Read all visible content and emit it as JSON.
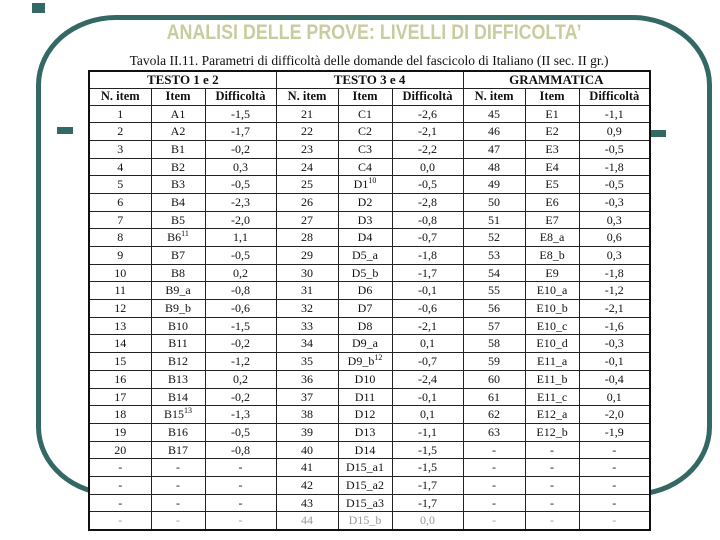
{
  "slide": {
    "title": "ANALISI DELLE PROVE: LIVELLI DI DIFFICOLTA’",
    "accent_color": "#336865",
    "title_color": "#c7cd9f"
  },
  "table": {
    "caption": "Tavola II.11. Parametri di difficoltà delle domande del fascicolo di Italiano (II sec. II gr.)",
    "groups": [
      {
        "label": "TESTO 1 e 2"
      },
      {
        "label": "TESTO 3 e 4"
      },
      {
        "label": "GRAMMATICA"
      }
    ],
    "columns": [
      "N. item",
      "Item",
      "Difficoltà"
    ],
    "rows": [
      [
        "1",
        "A1",
        "-1,5",
        "21",
        "C1",
        "-2,6",
        "45",
        "E1",
        "-1,1"
      ],
      [
        "2",
        "A2",
        "-1,7",
        "22",
        "C2",
        "-2,1",
        "46",
        "E2",
        "0,9"
      ],
      [
        "3",
        "B1",
        "-0,2",
        "23",
        "C3",
        "-2,2",
        "47",
        "E3",
        "-0,5"
      ],
      [
        "4",
        "B2",
        "0,3",
        "24",
        "C4",
        "0,0",
        "48",
        "E4",
        "-1,8"
      ],
      [
        "5",
        "B3",
        "-0,5",
        "25",
        "D1^10",
        "-0,5",
        "49",
        "E5",
        "-0,5"
      ],
      [
        "6",
        "B4",
        "-2,3",
        "26",
        "D2",
        "-2,8",
        "50",
        "E6",
        "-0,3"
      ],
      [
        "7",
        "B5",
        "-2,0",
        "27",
        "D3",
        "-0,8",
        "51",
        "E7",
        "0,3"
      ],
      [
        "8",
        "B6^11",
        "1,1",
        "28",
        "D4",
        "-0,7",
        "52",
        "E8_a",
        "0,6"
      ],
      [
        "9",
        "B7",
        "-0,5",
        "29",
        "D5_a",
        "-1,8",
        "53",
        "E8_b",
        "0,3"
      ],
      [
        "10",
        "B8",
        "0,2",
        "30",
        "D5_b",
        "-1,7",
        "54",
        "E9",
        "-1,8"
      ],
      [
        "11",
        "B9_a",
        "-0,8",
        "31",
        "D6",
        "-0,1",
        "55",
        "E10_a",
        "-1,2"
      ],
      [
        "12",
        "B9_b",
        "-0,6",
        "32",
        "D7",
        "-0,6",
        "56",
        "E10_b",
        "-2,1"
      ],
      [
        "13",
        "B10",
        "-1,5",
        "33",
        "D8",
        "-2,1",
        "57",
        "E10_c",
        "-1,6"
      ],
      [
        "14",
        "B11",
        "-0,2",
        "34",
        "D9_a",
        "0,1",
        "58",
        "E10_d",
        "-0,3"
      ],
      [
        "15",
        "B12",
        "-1,2",
        "35",
        "D9_b^12",
        "-0,7",
        "59",
        "E11_a",
        "-0,1"
      ],
      [
        "16",
        "B13",
        "0,2",
        "36",
        "D10",
        "-2,4",
        "60",
        "E11_b",
        "-0,4"
      ],
      [
        "17",
        "B14",
        "-0,2",
        "37",
        "D11",
        "-0,1",
        "61",
        "E11_c",
        "0,1"
      ],
      [
        "18",
        "B15^13",
        "-1,3",
        "38",
        "D12",
        "0,1",
        "62",
        "E12_a",
        "-2,0"
      ],
      [
        "19",
        "B16",
        "-0,5",
        "39",
        "D13",
        "-1,1",
        "63",
        "E12_b",
        "-1,9"
      ],
      [
        "20",
        "B17",
        "-0,8",
        "40",
        "D14",
        "-1,5",
        "-",
        "-",
        "-"
      ],
      [
        "-",
        "-",
        "-",
        "41",
        "D15_a1",
        "-1,5",
        "-",
        "-",
        "-"
      ],
      [
        "-",
        "-",
        "-",
        "42",
        "D15_a2",
        "-1,7",
        "-",
        "-",
        "-"
      ],
      [
        "-",
        "-",
        "-",
        "43",
        "D15_a3",
        "-1,7",
        "-",
        "-",
        "-"
      ],
      [
        "-",
        "-",
        "-",
        "44",
        "D15_b",
        "0,0",
        "-",
        "-",
        "-"
      ]
    ]
  }
}
